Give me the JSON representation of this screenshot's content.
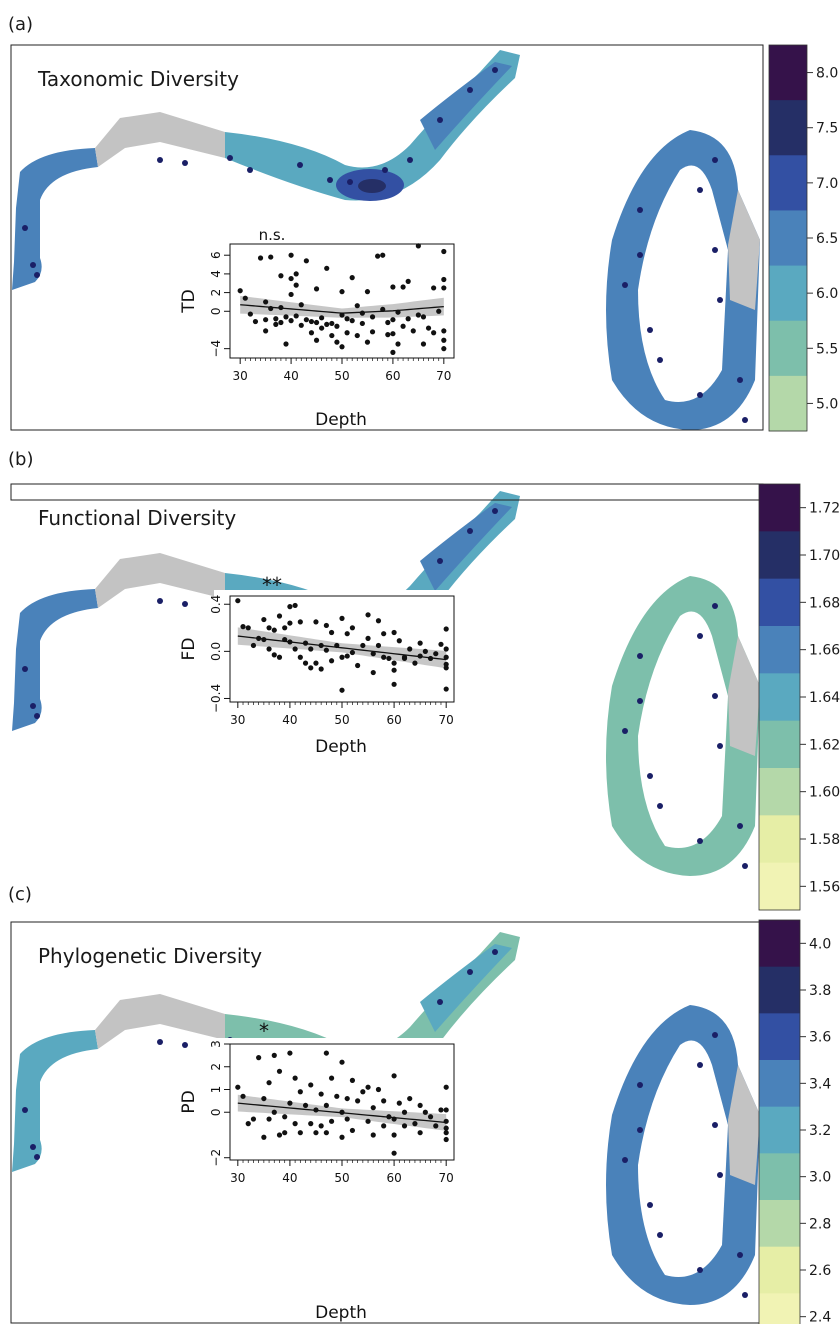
{
  "chart_data": [
    {
      "type": "scatter",
      "panel_label": "(a)",
      "map_title": "Taxonomic Diversity",
      "colorbar_ticks": [
        "8.0",
        "7.5",
        "7.0",
        "6.5",
        "6.0",
        "5.5",
        "5.0"
      ],
      "colorbar_values": [
        8.0,
        7.5,
        7.0,
        6.5,
        6.0,
        5.5,
        5.0
      ],
      "significance": "n.s.",
      "ylabel": "TD",
      "xlabel": "Depth",
      "xlim": [
        28,
        72
      ],
      "ylim": [
        -5,
        7.2
      ],
      "xticks": [
        30,
        40,
        50,
        60,
        70
      ],
      "yticks": [
        -4,
        0,
        2,
        4,
        6
      ],
      "trend": {
        "kind": "quadratic",
        "x": [
          30,
          40,
          50,
          60,
          70
        ],
        "y": [
          0.7,
          0.25,
          -0.2,
          0.05,
          0.5
        ],
        "band": 0.9
      },
      "x": [
        30,
        31,
        32,
        33,
        34,
        35,
        35,
        35,
        36,
        36,
        37,
        37,
        38,
        38,
        38,
        39,
        39,
        40,
        40,
        40,
        40,
        41,
        41,
        41,
        42,
        42,
        43,
        43,
        44,
        44,
        45,
        45,
        45,
        46,
        46,
        47,
        47,
        48,
        48,
        49,
        49,
        50,
        50,
        50,
        51,
        51,
        52,
        52,
        53,
        53,
        54,
        54,
        55,
        55,
        56,
        56,
        57,
        58,
        58,
        59,
        59,
        60,
        60,
        60,
        60,
        61,
        61,
        62,
        62,
        63,
        63,
        64,
        65,
        65,
        66,
        66,
        67,
        68,
        68,
        69,
        70,
        70,
        70,
        70,
        70,
        70
      ],
      "y": [
        2.2,
        1.4,
        -0.3,
        -1.1,
        5.7,
        1.0,
        -2.1,
        -0.9,
        5.8,
        0.3,
        -1.4,
        -0.8,
        3.8,
        -1.2,
        0.4,
        -0.6,
        -3.5,
        6.0,
        1.8,
        3.5,
        -1.0,
        4.0,
        -0.5,
        2.8,
        0.7,
        -1.5,
        5.4,
        -0.9,
        -2.3,
        -1.1,
        2.4,
        -1.2,
        -3.1,
        -1.8,
        -0.7,
        4.6,
        -1.4,
        -2.6,
        -1.3,
        -3.3,
        -1.6,
        -0.4,
        2.1,
        -3.8,
        -0.8,
        -2.3,
        -1.0,
        3.6,
        -2.6,
        0.6,
        -0.2,
        -1.3,
        2.1,
        -3.3,
        -2.2,
        -0.6,
        5.9,
        6.0,
        0.2,
        -1.2,
        -2.5,
        -0.9,
        2.6,
        -2.4,
        -4.4,
        -3.5,
        -0.1,
        2.6,
        -1.6,
        -0.8,
        3.2,
        -2.1,
        7.0,
        -0.4,
        -0.6,
        -3.5,
        -1.8,
        2.5,
        -2.3,
        0.0,
        6.4,
        3.4,
        2.5,
        -2.1,
        -3.1,
        -4.0
      ]
    },
    {
      "type": "scatter",
      "panel_label": "(b)",
      "map_title": "Functional Diversity",
      "colorbar_ticks": [
        "1.72",
        "1.70",
        "1.68",
        "1.66",
        "1.64",
        "1.62",
        "1.60",
        "1.58",
        "1.56"
      ],
      "colorbar_values": [
        1.72,
        1.7,
        1.68,
        1.66,
        1.64,
        1.62,
        1.6,
        1.58,
        1.56
      ],
      "significance": "**",
      "ylabel": "FD",
      "xlabel": "Depth",
      "xlim": [
        28.5,
        71.5
      ],
      "ylim": [
        -0.43,
        0.47
      ],
      "xticks": [
        30,
        40,
        50,
        60,
        70
      ],
      "yticks": [
        -0.4,
        0.0,
        0.4
      ],
      "trend": {
        "kind": "linear",
        "x": [
          30,
          70
        ],
        "y": [
          0.13,
          -0.07
        ],
        "band": 0.07
      },
      "x": [
        30,
        31,
        32,
        33,
        34,
        35,
        35,
        36,
        36,
        37,
        37,
        38,
        38,
        39,
        39,
        40,
        40,
        40,
        41,
        41,
        42,
        42,
        43,
        43,
        44,
        44,
        45,
        45,
        46,
        46,
        47,
        47,
        48,
        48,
        49,
        50,
        50,
        50,
        51,
        51,
        52,
        52,
        53,
        54,
        55,
        55,
        56,
        56,
        57,
        57,
        58,
        58,
        59,
        60,
        60,
        60,
        60,
        61,
        62,
        62,
        63,
        64,
        65,
        65,
        66,
        67,
        68,
        69,
        70,
        70,
        70,
        70,
        70,
        70
      ],
      "y": [
        0.43,
        0.21,
        0.2,
        0.05,
        0.11,
        0.27,
        0.1,
        0.02,
        0.2,
        -0.03,
        0.18,
        0.3,
        -0.05,
        0.2,
        0.1,
        0.38,
        0.24,
        0.08,
        0.39,
        0.02,
        -0.05,
        0.25,
        0.07,
        -0.1,
        0.02,
        -0.14,
        0.25,
        -0.1,
        0.05,
        -0.15,
        0.22,
        0.01,
        0.16,
        -0.08,
        0.05,
        0.28,
        -0.05,
        -0.33,
        0.15,
        -0.04,
        0.2,
        -0.01,
        -0.12,
        0.05,
        0.31,
        0.11,
        -0.02,
        -0.18,
        0.26,
        0.05,
        0.15,
        -0.05,
        -0.06,
        0.16,
        -0.1,
        -0.16,
        -0.28,
        0.09,
        -0.06,
        -0.05,
        0.02,
        -0.1,
        0.07,
        -0.04,
        0.0,
        -0.06,
        -0.02,
        0.06,
        0.19,
        0.02,
        -0.05,
        -0.11,
        -0.14,
        -0.32
      ]
    },
    {
      "type": "scatter",
      "panel_label": "(c)",
      "map_title": "Phylogenetic Diversity",
      "colorbar_ticks": [
        "4.0",
        "3.8",
        "3.6",
        "3.4",
        "3.2",
        "3.0",
        "2.8",
        "2.6",
        "2.4"
      ],
      "colorbar_values": [
        4.0,
        3.8,
        3.6,
        3.4,
        3.2,
        3.0,
        2.8,
        2.6,
        2.4
      ],
      "significance": "*",
      "ylabel": "PD",
      "xlabel": "Depth",
      "xlim": [
        28.5,
        71.5
      ],
      "ylim": [
        -2.1,
        3.0
      ],
      "xticks": [
        30,
        40,
        50,
        60,
        70
      ],
      "yticks": [
        -2,
        0,
        1,
        2,
        3
      ],
      "trend": {
        "kind": "linear",
        "x": [
          30,
          70
        ],
        "y": [
          0.4,
          -0.45
        ],
        "band": 0.35
      },
      "x": [
        30,
        31,
        32,
        33,
        34,
        35,
        35,
        36,
        36,
        37,
        37,
        38,
        38,
        39,
        39,
        40,
        40,
        41,
        41,
        42,
        42,
        43,
        44,
        44,
        45,
        45,
        46,
        46,
        47,
        47,
        47,
        48,
        48,
        49,
        50,
        50,
        50,
        51,
        51,
        52,
        52,
        53,
        54,
        55,
        55,
        56,
        56,
        57,
        58,
        58,
        59,
        60,
        60,
        60,
        60,
        61,
        62,
        62,
        63,
        64,
        65,
        65,
        66,
        67,
        68,
        69,
        70,
        70,
        70,
        70,
        70,
        70
      ],
      "y": [
        1.1,
        0.7,
        -0.5,
        -0.3,
        2.4,
        0.6,
        -1.1,
        1.3,
        -0.3,
        2.5,
        0.0,
        1.8,
        -1.0,
        -0.2,
        -0.9,
        2.6,
        0.4,
        1.5,
        -0.5,
        0.9,
        -0.9,
        0.3,
        1.2,
        -0.5,
        0.1,
        -0.9,
        0.8,
        -0.6,
        2.6,
        0.3,
        -0.9,
        1.5,
        -0.4,
        0.7,
        2.2,
        0.0,
        -1.1,
        0.6,
        -0.3,
        1.4,
        -0.8,
        0.5,
        0.9,
        1.1,
        -0.4,
        0.2,
        -1.0,
        1.0,
        0.5,
        -0.6,
        -0.2,
        1.6,
        -0.3,
        -1.0,
        -1.8,
        0.4,
        -0.6,
        0.0,
        0.6,
        -0.5,
        0.3,
        -0.9,
        0.0,
        -0.2,
        -0.6,
        0.1,
        1.1,
        0.1,
        -0.4,
        -0.7,
        -1.2,
        -0.9
      ]
    }
  ]
}
